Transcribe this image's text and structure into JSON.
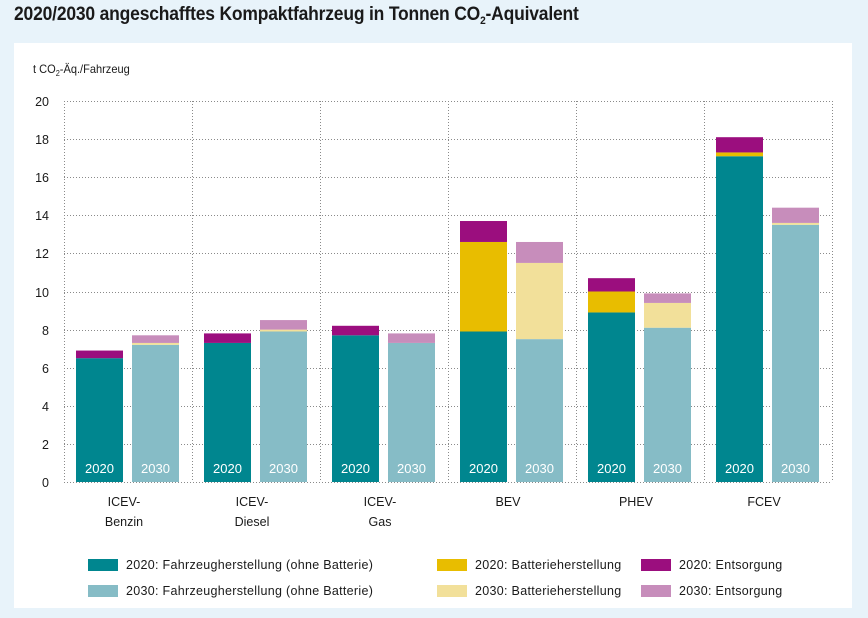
{
  "title": {
    "main": "2020/2030 angeschafftes Kompaktfahrzeug in Tonnen CO",
    "sub": "2",
    "suffix": "-Aquivalent"
  },
  "ylabel": {
    "main": "t CO",
    "sub": "2",
    "suffix": "-Äq./Fahrzeug"
  },
  "colors": {
    "background": "#e8f3fa",
    "card": "#ffffff",
    "fz2020": "#00868f",
    "fz2030": "#86bcc6",
    "bat2020": "#e8bd00",
    "bat2030": "#f2e09a",
    "ent2020": "#9b0e7e",
    "ent2030": "#c78dbb"
  },
  "legend": [
    {
      "label": "2020: Fahrzeugherstellung (ohne Batterie)",
      "color": "#00868f"
    },
    {
      "label": "2020: Batterieherstellung",
      "color": "#e8bd00"
    },
    {
      "label": "2020: Entsorgung",
      "color": "#9b0e7e"
    },
    {
      "label": "2030: Fahrzeugherstellung (ohne Batterie)",
      "color": "#86bcc6"
    },
    {
      "label": "2030: Batterieherstellung",
      "color": "#f2e09a"
    },
    {
      "label": "2030: Entsorgung",
      "color": "#c78dbb"
    }
  ],
  "chart_data": {
    "type": "bar",
    "stacked": true,
    "title": "2020/2030 angeschafftes Kompaktfahrzeug in Tonnen CO2-Aquivalent",
    "xlabel": "",
    "ylabel": "t CO2-Äq./Fahrzeug",
    "ylim": [
      0,
      20
    ],
    "yticks": [
      0,
      2,
      4,
      6,
      8,
      10,
      12,
      14,
      16,
      18,
      20
    ],
    "grid": true,
    "legend_position": "bottom",
    "categories": [
      [
        "ICEV-",
        "Benzin"
      ],
      [
        "ICEV-",
        "Diesel"
      ],
      [
        "ICEV-",
        "Gas"
      ],
      [
        "BEV"
      ],
      [
        "PHEV"
      ],
      [
        "FCEV"
      ]
    ],
    "bar_labels": [
      "2020",
      "2030"
    ],
    "series": [
      {
        "name": "2020: Fahrzeugherstellung (ohne Batterie)",
        "year": "2020",
        "component": "Fahrzeugherstellung",
        "values": [
          6.5,
          7.3,
          7.7,
          7.9,
          8.9,
          17.1
        ]
      },
      {
        "name": "2020: Batterieherstellung",
        "year": "2020",
        "component": "Batterieherstellung",
        "values": [
          0.0,
          0.0,
          0.0,
          4.7,
          1.1,
          0.2
        ]
      },
      {
        "name": "2020: Entsorgung",
        "year": "2020",
        "component": "Entsorgung",
        "values": [
          0.4,
          0.5,
          0.5,
          1.1,
          0.7,
          0.8
        ]
      },
      {
        "name": "2030: Fahrzeugherstellung (ohne Batterie)",
        "year": "2030",
        "component": "Fahrzeugherstellung",
        "values": [
          7.2,
          7.9,
          7.3,
          7.5,
          8.1,
          13.5
        ]
      },
      {
        "name": "2030: Batterieherstellung",
        "year": "2030",
        "component": "Batterieherstellung",
        "values": [
          0.1,
          0.1,
          0.0,
          4.0,
          1.3,
          0.1
        ]
      },
      {
        "name": "2030: Entsorgung",
        "year": "2030",
        "component": "Entsorgung",
        "values": [
          0.4,
          0.5,
          0.5,
          1.1,
          0.5,
          0.8
        ]
      }
    ]
  }
}
